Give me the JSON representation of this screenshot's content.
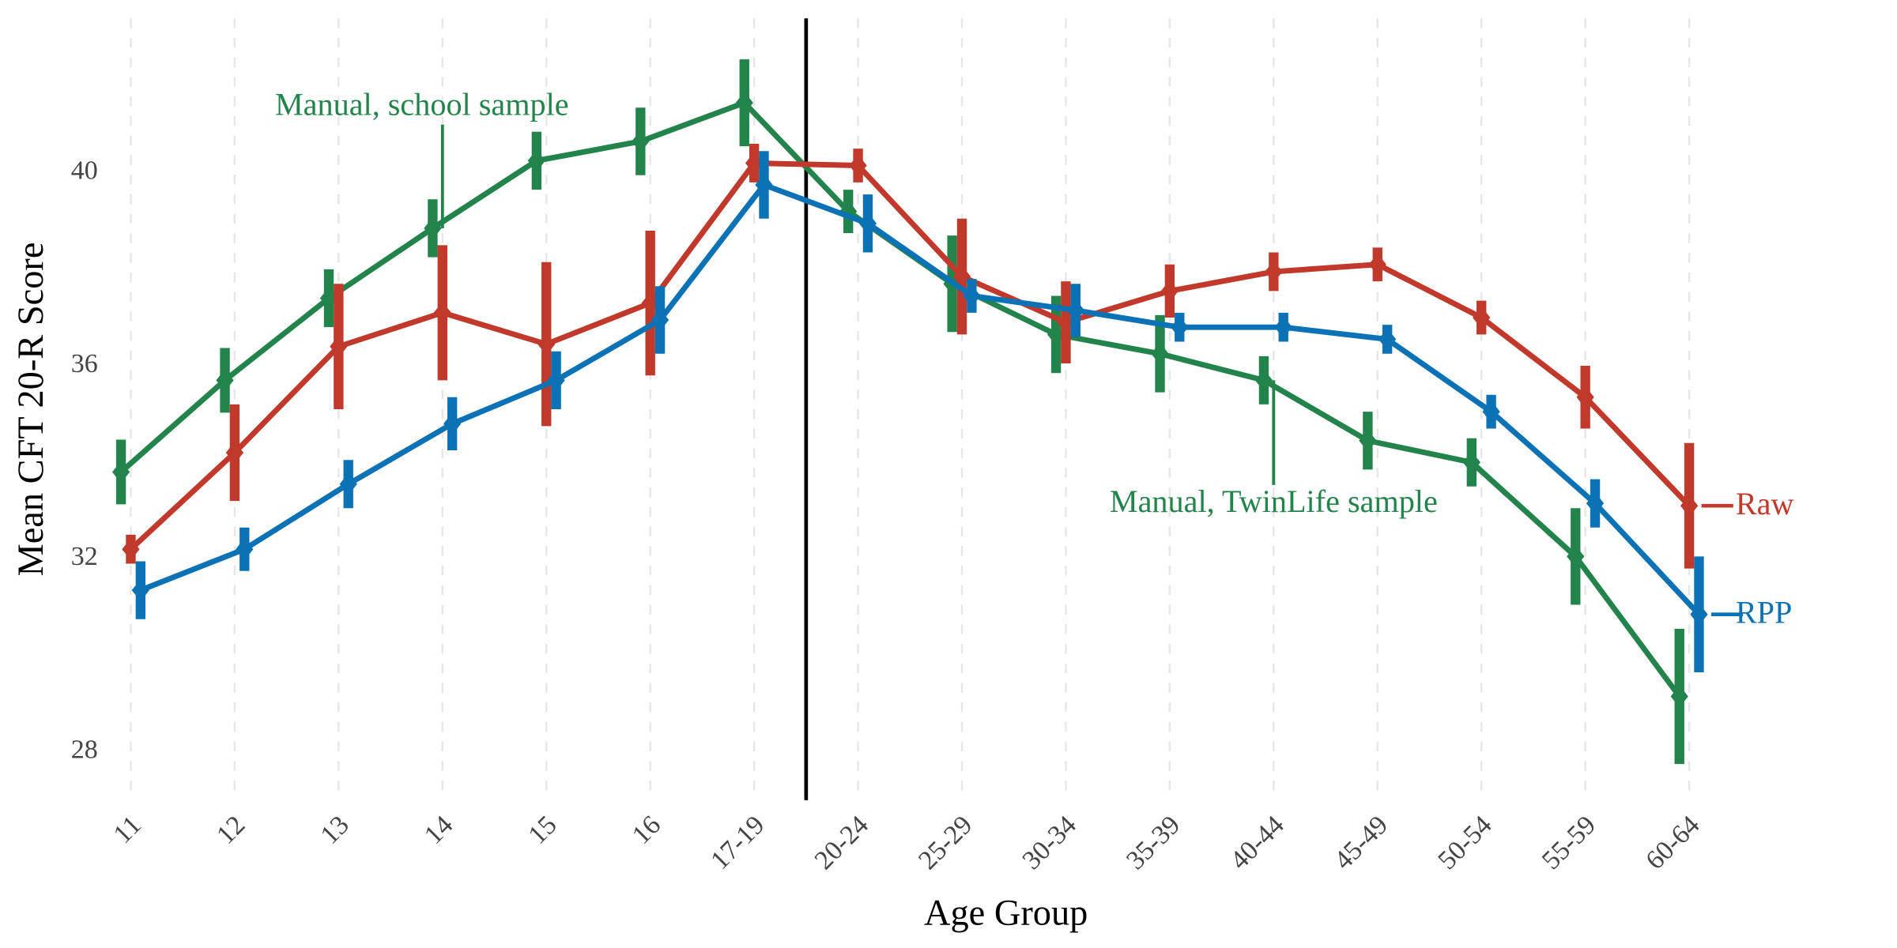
{
  "chart_data": {
    "type": "line",
    "x_label": "Age Group",
    "y_label": "Mean CFT 20-R Score",
    "categories": [
      "11",
      "12",
      "13",
      "14",
      "15",
      "16",
      "17-19",
      "20-24",
      "25-29",
      "30-34",
      "35-39",
      "40-44",
      "45-49",
      "50-54",
      "55-59",
      "60-64"
    ],
    "series": [
      {
        "color": "#23844b",
        "values": [
          33.8,
          35.7,
          37.4,
          38.85,
          40.25,
          40.65,
          41.45,
          39.2,
          37.7,
          36.65,
          36.25,
          35.7,
          34.45,
          34.0,
          32.05,
          29.15
        ],
        "errors": [
          0.67,
          0.67,
          0.6,
          0.6,
          0.6,
          0.7,
          0.9,
          0.45,
          1.0,
          0.8,
          0.8,
          0.5,
          0.6,
          0.5,
          1.0,
          1.4
        ]
      },
      {
        "name": "Raw",
        "color": "#c0392b",
        "values": [
          32.2,
          34.2,
          36.4,
          37.1,
          36.45,
          37.3,
          40.2,
          40.15,
          37.85,
          36.9,
          37.55,
          37.95,
          38.1,
          37.0,
          35.35,
          33.1
        ],
        "errors": [
          0.3,
          1.0,
          1.3,
          1.4,
          1.7,
          1.5,
          0.4,
          0.35,
          1.2,
          0.85,
          0.55,
          0.4,
          0.35,
          0.35,
          0.65,
          1.3
        ]
      },
      {
        "name": "RPP",
        "color": "#0b72b5",
        "values": [
          31.35,
          32.2,
          33.55,
          34.8,
          35.7,
          36.95,
          39.75,
          38.95,
          37.45,
          37.15,
          36.8,
          36.8,
          36.55,
          35.05,
          33.15,
          30.85
        ],
        "errors": [
          0.6,
          0.45,
          0.5,
          0.55,
          0.6,
          0.7,
          0.7,
          0.6,
          0.35,
          0.55,
          0.3,
          0.3,
          0.3,
          0.35,
          0.5,
          1.2
        ]
      }
    ],
    "annotations": [
      {
        "text": "Manual, school sample",
        "x": "14",
        "series": 0
      },
      {
        "text": "Manual, TwinLife sample",
        "x": "40-44",
        "series": 0
      }
    ],
    "vline_x": 6.5,
    "ylim": [
      27,
      43.2
    ],
    "yticks": [
      28,
      32,
      36,
      40
    ],
    "grid": "x"
  }
}
